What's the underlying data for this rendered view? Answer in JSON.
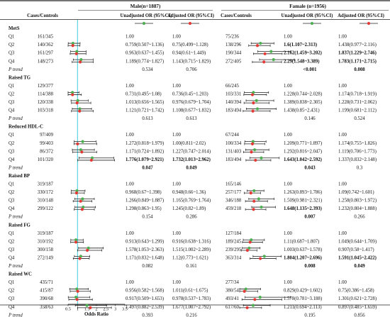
{
  "header": {
    "male_title": "Male(n=1887)",
    "female_title": "Famale (n=1956)",
    "cases_controls": "Cases/Controls",
    "unadjusted_or": "Unadjusted OR (95%CI)",
    "adjusted_or": "Adjusted OR (95%CI)"
  },
  "legend": {
    "unadjusted_color": "#4caf50",
    "adjusted_color": "#e53935"
  },
  "axis": {
    "ticks": [
      "0.5",
      "1",
      "1.5",
      "2",
      "2.5",
      "3",
      "3.5"
    ],
    "tick_values": [
      0.5,
      1,
      1.5,
      2,
      2.5,
      3,
      3.5
    ],
    "label": "Odds Ratio",
    "reference": 1,
    "line_color": "#4dd0e1"
  },
  "chart_data": {
    "type": "forest",
    "xlabel": "Odds Ratio",
    "xlim": [
      0.5,
      3.5
    ],
    "reference_line": 1,
    "groups": [
      {
        "title": "MetS",
        "rows": [
          {
            "label": "Q1",
            "male_cc": "161/345",
            "male_un": "1.00",
            "male_adj": "1.00",
            "female_cc": "75/236",
            "female_un": "1.00",
            "female_adj": "1.00",
            "m_un": [
              1.0,
              1.0,
              1.0
            ],
            "m_adj": [
              1.0,
              1.0,
              1.0
            ],
            "f_un": [
              1.0,
              1.0,
              1.0
            ],
            "f_adj": [
              1.0,
              1.0,
              1.0
            ]
          },
          {
            "label": "Q2",
            "male_cc": "140/362",
            "male_un": "0.759(0.507~1.136)",
            "male_adj": "0.75(0.499~1.128)",
            "female_cc": "138/296",
            "female_un": "1.6(1.107~2.313)",
            "female_adj": "1.438(0.977~2.116)",
            "female_un_bold": true,
            "m_un": [
              0.759,
              0.507,
              1.136
            ],
            "m_adj": [
              0.75,
              0.499,
              1.128
            ],
            "f_un": [
              1.6,
              1.107,
              2.313
            ],
            "f_adj": [
              1.438,
              0.977,
              2.116
            ]
          },
          {
            "label": "Q3",
            "male_cc": "161/297",
            "male_un": "0.963(0.637~1.455)",
            "male_adj": "0.94(0.61~1.449)",
            "female_cc": "190/344",
            "female_un": "2.162(1.459~3.202)",
            "female_adj": "1.837(1.229~2.746)",
            "female_un_bold": true,
            "female_adj_bold": true,
            "m_un": [
              0.963,
              0.637,
              1.455
            ],
            "m_adj": [
              0.94,
              0.61,
              1.449
            ],
            "f_un": [
              2.162,
              1.459,
              3.202
            ],
            "f_adj": [
              1.837,
              1.229,
              2.746
            ]
          },
          {
            "label": "Q4",
            "male_cc": "148/273",
            "male_un": "1.189(0.774~1.827)",
            "male_adj": "1.143(0.715~1.829)",
            "female_cc": "272/405",
            "female_un": "2.29(1.548~3.389)",
            "female_adj": "1.783(1.171~2.715)",
            "female_un_bold": true,
            "female_adj_bold": true,
            "m_un": [
              1.189,
              0.774,
              1.827
            ],
            "m_adj": [
              1.143,
              0.715,
              1.829
            ],
            "f_un": [
              2.29,
              1.548,
              3.389
            ],
            "f_adj": [
              1.783,
              1.171,
              2.715
            ]
          }
        ],
        "p_trend": {
          "male_un": "0.534",
          "male_adj": "0.706",
          "female_un": "<0.001",
          "female_adj": "0.008",
          "female_un_bold": true,
          "female_adj_bold": true
        }
      },
      {
        "title": "Raised TG",
        "rows": [
          {
            "label": "Q1",
            "male_cc": "129/377",
            "male_un": "1.00",
            "male_adj": "1.00",
            "female_cc": "66/245",
            "female_un": "1.00",
            "female_adj": "1.00",
            "m_un": [
              1.0,
              1.0,
              1.0
            ],
            "m_adj": [
              1.0,
              1.0,
              1.0
            ],
            "f_un": [
              1.0,
              1.0,
              1.0
            ],
            "f_adj": [
              1.0,
              1.0,
              1.0
            ]
          },
          {
            "label": "Q2",
            "male_cc": "114/388",
            "male_un": "0.731(0.495~1.08)",
            "male_adj": "0.736(0.45~1.203)",
            "female_cc": "103/331",
            "female_un": "1.228(0.744~2.028)",
            "female_adj": "1.174(0.718~1.919)",
            "m_un": [
              0.731,
              0.495,
              1.08
            ],
            "m_adj": [
              0.736,
              0.45,
              1.203
            ],
            "f_un": [
              1.228,
              0.744,
              2.028
            ],
            "f_adj": [
              1.174,
              0.718,
              1.919
            ]
          },
          {
            "label": "Q3",
            "male_cc": "120/338",
            "male_un": "1.013(0.656~1.565)",
            "male_adj": "0.976(0.679~1.704)",
            "female_cc": "140/394",
            "female_un": "1.389(0.838~2.305)",
            "female_adj": "1.228(0.731~2.062)",
            "m_un": [
              1.013,
              0.656,
              1.565
            ],
            "m_adj": [
              0.976,
              0.679,
              1.704
            ],
            "f_un": [
              1.389,
              0.838,
              2.305
            ],
            "f_adj": [
              1.228,
              0.731,
              2.062
            ]
          },
          {
            "label": "Q4",
            "male_cc": "103/318",
            "male_un": "1.121(0.721~1.742)",
            "male_adj": "1.108(0.677~1.832)",
            "female_cc": "183/494",
            "female_un": "1.438(0.85~2.431)",
            "female_adj": "1.199(0.681~2.112)",
            "m_un": [
              1.121,
              0.721,
              1.742
            ],
            "m_adj": [
              1.108,
              0.677,
              1.832
            ],
            "f_un": [
              1.438,
              0.85,
              2.431
            ],
            "f_adj": [
              1.199,
              0.681,
              2.112
            ]
          }
        ],
        "p_trend": {
          "male_un": "0.613",
          "male_adj": "0.613",
          "female_un": "0.146",
          "female_adj": "0.524"
        }
      },
      {
        "title": "Reduced HDL-C",
        "rows": [
          {
            "label": "Q1",
            "male_cc": "97/409",
            "male_un": "1.00",
            "male_adj": "1.00",
            "female_cc": "67/244",
            "female_un": "1.00",
            "female_adj": "1.00",
            "m_un": [
              1.0,
              1.0,
              1.0
            ],
            "m_adj": [
              1.0,
              1.0,
              1.0
            ],
            "f_un": [
              1.0,
              1.0,
              1.0
            ],
            "f_adj": [
              1.0,
              1.0,
              1.0
            ]
          },
          {
            "label": "Q2",
            "male_cc": "99/403",
            "male_un": "1.272(0.818~1.979)",
            "male_adj": "1.00(0.811~2.02)",
            "female_cc": "100/334",
            "female_un": "1.209(0.771~1.897)",
            "female_adj": "1.174(0.755~1.826)",
            "m_un": [
              1.272,
              0.818,
              1.979
            ],
            "m_adj": [
              1.0,
              0.811,
              2.02
            ],
            "f_un": [
              1.209,
              0.771,
              1.897
            ],
            "f_adj": [
              1.174,
              0.755,
              1.826
            ]
          },
          {
            "label": "Q3",
            "male_cc": "86/372",
            "male_un": "1.171(0.724~1.892)",
            "male_adj": "1.227(0.747~2.014)",
            "female_cc": "131/403",
            "female_un": "1.292(0.816~2.047)",
            "female_adj": "1.119(0.706~1.773)",
            "m_un": [
              1.171,
              0.724,
              1.892
            ],
            "m_adj": [
              1.227,
              0.747,
              2.014
            ],
            "f_un": [
              1.292,
              0.816,
              2.047
            ],
            "f_adj": [
              1.119,
              0.706,
              1.773
            ]
          },
          {
            "label": "Q4",
            "male_cc": "101/320",
            "male_un": "1.776(1.079~2.921)",
            "male_adj": "1.732(1.013~2.962)",
            "female_cc": "183/494",
            "female_un": "1.643(1.042~2.592)",
            "female_adj": "1.337(0.832~2.148)",
            "male_un_bold": true,
            "male_adj_bold": true,
            "female_un_bold": true,
            "m_un": [
              1.776,
              1.079,
              2.921
            ],
            "m_adj": [
              1.732,
              1.013,
              2.962
            ],
            "f_un": [
              1.643,
              1.042,
              2.592
            ],
            "f_adj": [
              1.337,
              0.832,
              2.148
            ]
          }
        ],
        "p_trend": {
          "male_un": "0.047",
          "male_adj": "0.049",
          "female_un": "0.043",
          "female_adj": "0.3",
          "male_un_bold": true,
          "male_adj_bold": true,
          "female_un_bold": true
        }
      },
      {
        "title": "Raised BP",
        "rows": [
          {
            "label": "Q1",
            "male_cc": "319/187",
            "male_un": "1.00",
            "male_adj": "1.00",
            "female_cc": "165/146",
            "female_un": "1.00",
            "female_adj": "1.00",
            "m_un": [
              1.0,
              1.0,
              1.0
            ],
            "m_adj": [
              1.0,
              1.0,
              1.0
            ],
            "f_un": [
              1.0,
              1.0,
              1.0
            ],
            "f_adj": [
              1.0,
              1.0,
              1.0
            ]
          },
          {
            "label": "Q2",
            "male_cc": "330/172",
            "male_un": "0.968(0.67~1.398)",
            "male_adj": "0.948(0.66~1.36)",
            "female_cc": "257/177",
            "female_un": "1.263(0.893~1.786)",
            "female_adj": "1.09(0.742~1.601)",
            "m_un": [
              0.968,
              0.67,
              1.398
            ],
            "m_adj": [
              0.948,
              0.66,
              1.36
            ],
            "f_un": [
              1.263,
              0.893,
              1.786
            ],
            "f_adj": [
              1.09,
              0.742,
              1.601
            ]
          },
          {
            "label": "Q3",
            "male_cc": "310/148",
            "male_un": "1.266(0.849~1.887)",
            "male_adj": "1.165(0.769~1.764)",
            "female_cc": "346/188",
            "female_un": "1.509(0.981~2.321)",
            "female_adj": "1.258(0.803~1.972)",
            "m_un": [
              1.266,
              0.849,
              1.887
            ],
            "m_adj": [
              1.165,
              0.769,
              1.764
            ],
            "f_un": [
              1.509,
              0.981,
              2.321
            ],
            "f_adj": [
              1.258,
              0.803,
              1.972
            ]
          },
          {
            "label": "Q4",
            "male_cc": "299/122",
            "male_un": "1.298(0.863~1.95)",
            "male_adj": "1.245(0.82~1.89)",
            "female_cc": "459/218",
            "female_un": "1.648(1.135~2.393)",
            "female_adj": "1.232(0.804~1.888)",
            "female_un_bold": true,
            "m_un": [
              1.298,
              0.863,
              1.95
            ],
            "m_adj": [
              1.245,
              0.82,
              1.89
            ],
            "f_un": [
              1.648,
              1.135,
              2.393
            ],
            "f_adj": [
              1.232,
              0.804,
              1.888
            ]
          }
        ],
        "p_trend": {
          "male_un": "0.154",
          "male_adj": "0.286",
          "female_un": "0.007",
          "female_adj": "0.266",
          "female_un_bold": true
        }
      },
      {
        "title": "Raised FG",
        "rows": [
          {
            "label": "Q1",
            "male_cc": "319/187",
            "male_un": "1.00",
            "male_adj": "1.00",
            "female_cc": "127/184",
            "female_un": "1.00",
            "female_adj": "1.00",
            "m_un": [
              1.0,
              1.0,
              1.0
            ],
            "m_adj": [
              1.0,
              1.0,
              1.0
            ],
            "f_un": [
              1.0,
              1.0,
              1.0
            ],
            "f_adj": [
              1.0,
              1.0,
              1.0
            ]
          },
          {
            "label": "Q2",
            "male_cc": "310/192",
            "male_un": "0.913(0.643~1.299)",
            "male_adj": "0.916(0.638~1.316)",
            "female_cc": "189/245",
            "female_un": "1.11(0.687~1.807)",
            "female_adj": "1.049(0.644~1.709)",
            "m_un": [
              0.913,
              0.643,
              1.299
            ],
            "m_adj": [
              0.916,
              0.638,
              1.316
            ],
            "f_un": [
              1.11,
              0.687,
              1.807
            ],
            "f_adj": [
              1.049,
              0.644,
              1.709
            ]
          },
          {
            "label": "Q3",
            "male_cc": "300/158",
            "male_un": "1.578(1.053~2.363)",
            "male_adj": "1.515(1.002~2.289)",
            "female_cc": "239/295",
            "female_un": "1.003(0.637~1.578)",
            "female_adj": "0.907(0.58~1.417)",
            "m_un": [
              1.578,
              1.053,
              2.363
            ],
            "m_adj": [
              1.515,
              1.002,
              2.289
            ],
            "f_un": [
              1.003,
              0.637,
              1.578
            ],
            "f_adj": [
              0.907,
              0.58,
              1.417
            ]
          },
          {
            "label": "Q4",
            "male_cc": "272/149",
            "male_un": "1.171(0.832~1.648)",
            "male_adj": "1.12(0.773~1.621)",
            "female_cc": "363/314",
            "female_un": "1.804(1.207~2.696)",
            "female_adj": "1.591(1.045~2.422)",
            "female_un_bold": true,
            "female_adj_bold": true,
            "m_un": [
              1.171,
              0.832,
              1.648
            ],
            "m_adj": [
              1.12,
              0.773,
              1.621
            ],
            "f_un": [
              1.804,
              1.207,
              2.696
            ],
            "f_adj": [
              1.591,
              1.045,
              2.422
            ]
          }
        ],
        "p_trend": {
          "male_un": "0.082",
          "male_adj": "0.161",
          "female_un": "0.008",
          "female_adj": "0.049",
          "female_un_bold": true,
          "female_adj_bold": true
        }
      },
      {
        "title": "Raised WC",
        "rows": [
          {
            "label": "Q1",
            "male_cc": "435/71",
            "male_un": "1.00",
            "male_adj": "1.00",
            "female_cc": "277/34",
            "female_un": "1.00",
            "female_adj": "1.00",
            "m_un": [
              1.0,
              1.0,
              1.0
            ],
            "m_adj": [
              1.0,
              1.0,
              1.0
            ],
            "f_un": [
              1.0,
              1.0,
              1.0
            ],
            "f_adj": [
              1.0,
              1.0,
              1.0
            ]
          },
          {
            "label": "Q2",
            "male_cc": "415/87",
            "male_un": "0.956(0.582~1.568)",
            "male_adj": "1.011(0.61~1.675)",
            "female_cc": "380/54",
            "female_un": "0.829(0.429~1.602)",
            "female_adj": "0.75(0.386~1.458)",
            "m_un": [
              0.956,
              0.582,
              1.568
            ],
            "m_adj": [
              1.011,
              0.61,
              1.675
            ],
            "f_un": [
              0.829,
              0.429,
              1.602
            ],
            "f_adj": [
              0.75,
              0.386,
              1.458
            ]
          },
          {
            "label": "Q3",
            "male_cc": "390/68",
            "male_un": "0.917(0.509~1.653)",
            "male_adj": "0.978(0.537~1.783)",
            "female_cc": "493/41",
            "female_un": "1.578(0.781~3.188)",
            "female_adj": "1.301(0.621~2.728)",
            "m_un": [
              0.917,
              0.509,
              1.653
            ],
            "m_adj": [
              0.978,
              0.537,
              1.783
            ],
            "f_un": [
              1.578,
              0.781,
              3.188
            ],
            "f_adj": [
              1.301,
              0.621,
              2.728
            ]
          },
          {
            "label": "Q4",
            "male_cc": "358/63",
            "male_un": "1.497(0.882~2.539)",
            "male_adj": "1.677(1.007~2.792)",
            "female_cc": "617/60",
            "female_un": "1.211(0.694~2.113)",
            "female_adj": "0.897(0.485~1.659)",
            "m_un": [
              1.497,
              0.882,
              2.539
            ],
            "m_adj": [
              1.677,
              1.007,
              2.792
            ],
            "f_un": [
              1.211,
              0.694,
              2.113
            ],
            "f_adj": [
              0.897,
              0.485,
              1.659
            ]
          }
        ],
        "p_trend": {
          "male_un": "0.393",
          "male_adj": "0.216",
          "female_un": "0.195",
          "female_adj": "0.856"
        }
      }
    ]
  }
}
